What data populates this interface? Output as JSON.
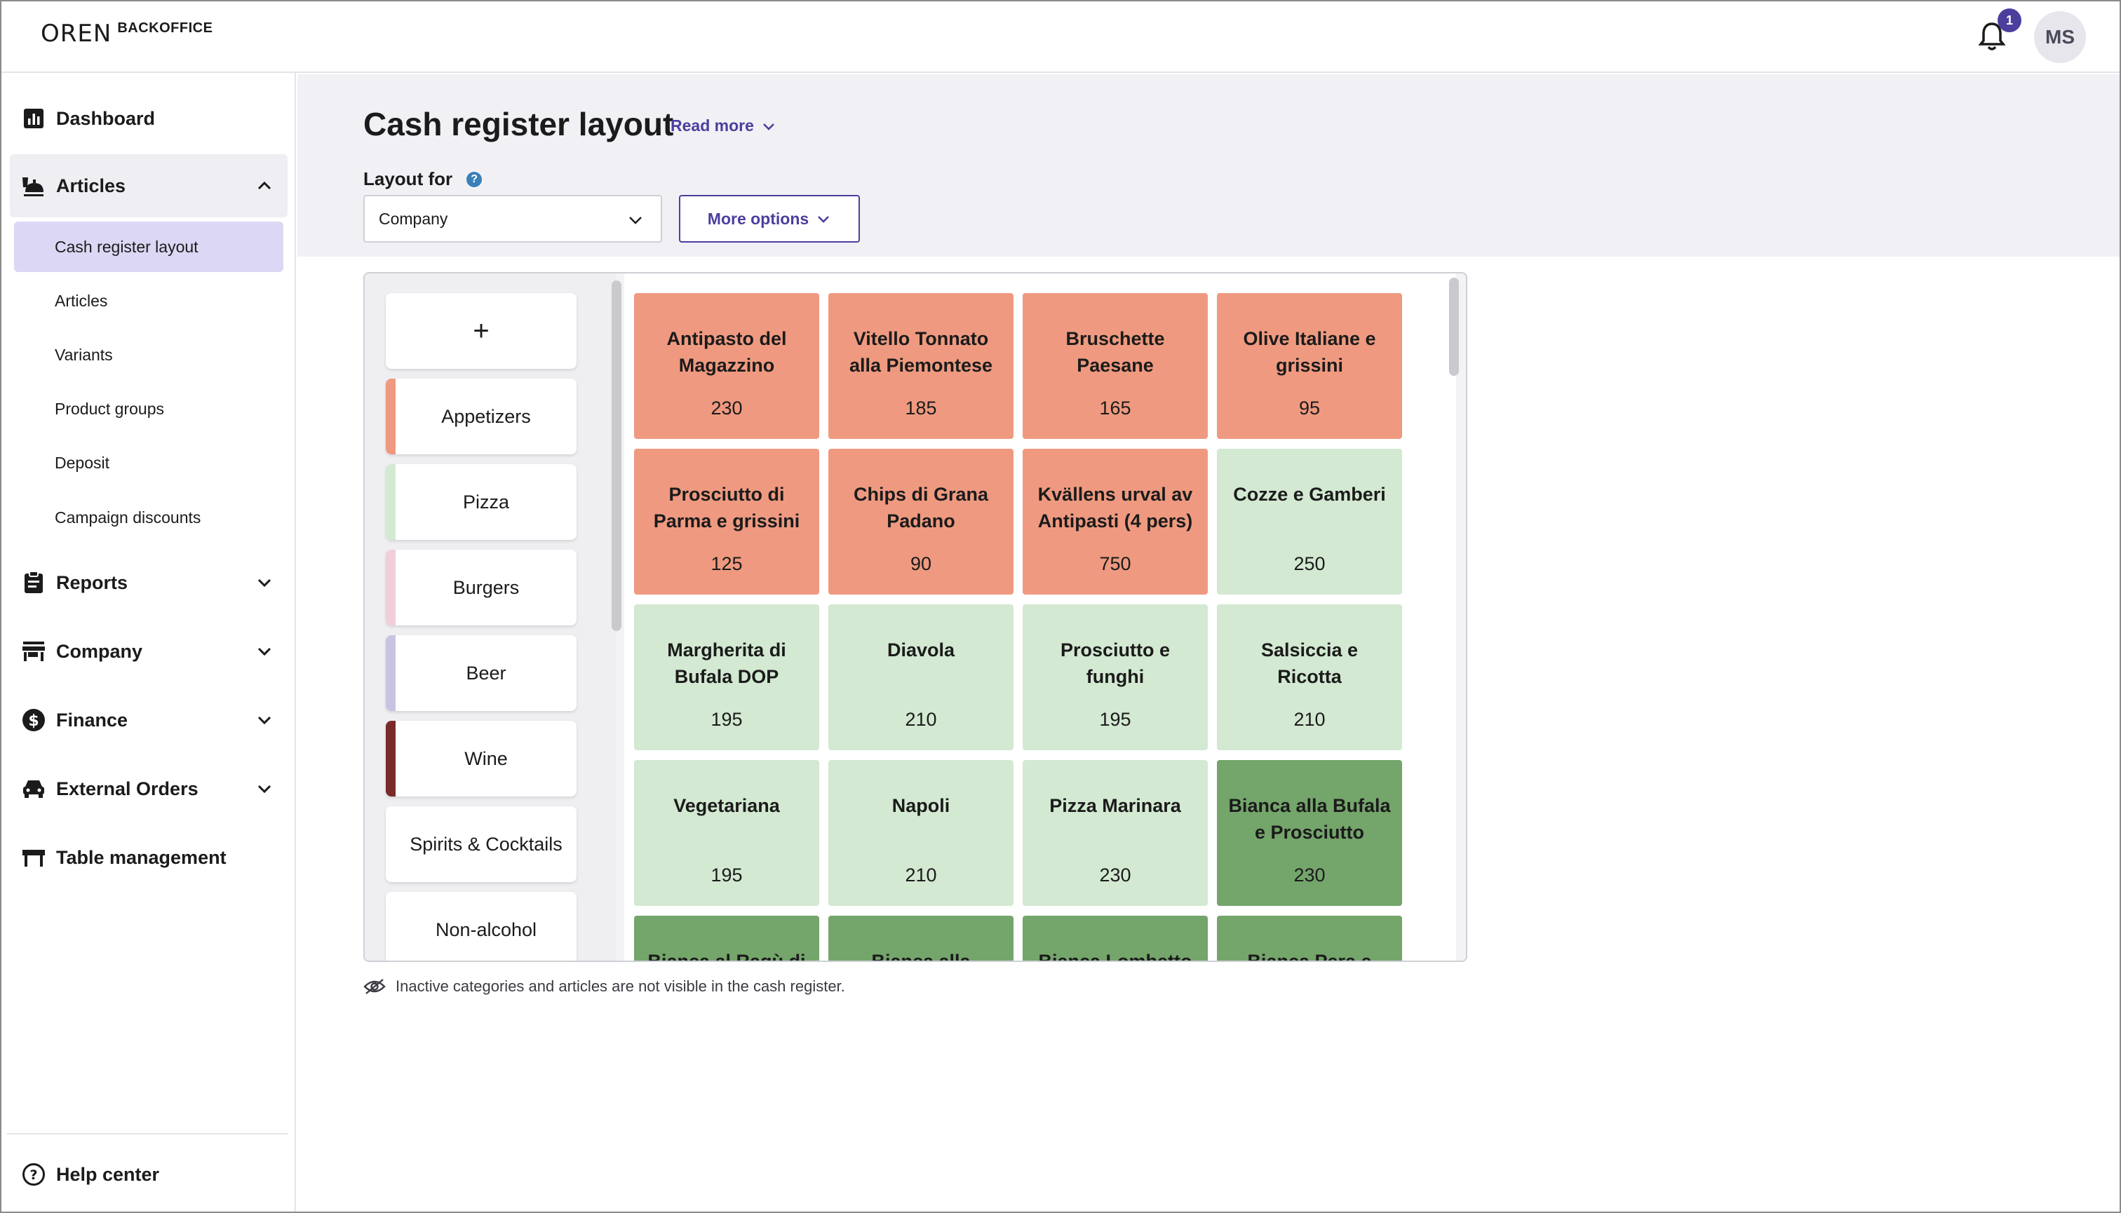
{
  "app": {
    "logo_mark": "OREN",
    "logo_word": "BACKOFFICE"
  },
  "header": {
    "notification_count": "1",
    "avatar_initials": "MS"
  },
  "sidebar": {
    "dashboard": "Dashboard",
    "articles": "Articles",
    "articles_sub": [
      "Cash register layout",
      "Articles",
      "Variants",
      "Product groups",
      "Deposit",
      "Campaign discounts"
    ],
    "reports": "Reports",
    "company": "Company",
    "finance": "Finance",
    "external_orders": "External Orders",
    "table_management": "Table management",
    "help_center": "Help center"
  },
  "page": {
    "title": "Cash register layout",
    "read_more": "Read more",
    "layout_for_label": "Layout for",
    "layout_for_value": "Company",
    "more_options": "More options",
    "footnote": "Inactive categories and articles are not visible in the cash register."
  },
  "categories": [
    {
      "label": "+",
      "color": ""
    },
    {
      "label": "Appetizers",
      "color": "#ef9a80"
    },
    {
      "label": "Pizza",
      "color": "#d3ead2"
    },
    {
      "label": "Burgers",
      "color": "#f1cfd8"
    },
    {
      "label": "Beer",
      "color": "#c9c3e2"
    },
    {
      "label": "Wine",
      "color": "#7a2a28"
    },
    {
      "label": "Spirits & Cocktails",
      "color": "#ffffff"
    },
    {
      "label": "Non-alcohol",
      "color": "#ffffff"
    }
  ],
  "colors": {
    "salmon": "#ef9a80",
    "light_green": "#d3e9d2",
    "dark_green": "#74a56b",
    "accent": "#4b3f9e"
  },
  "tiles": [
    {
      "name": "Antipasto del Magazzino",
      "price": "230",
      "color": "#ef9a80"
    },
    {
      "name": "Vitello Tonnato alla Piemontese",
      "price": "185",
      "color": "#ef9a80"
    },
    {
      "name": "Bruschette Paesane",
      "price": "165",
      "color": "#ef9a80"
    },
    {
      "name": "Olive Italiane e grissini",
      "price": "95",
      "color": "#ef9a80"
    },
    {
      "name": "Prosciutto di Parma e grissini",
      "price": "125",
      "color": "#ef9a80"
    },
    {
      "name": "Chips di Grana Padano",
      "price": "90",
      "color": "#ef9a80"
    },
    {
      "name": "Kvällens urval av Antipasti (4 pers)",
      "price": "750",
      "color": "#ef9a80"
    },
    {
      "name": "Cozze e Gamberi",
      "price": "250",
      "color": "#d3e9d2"
    },
    {
      "name": "Margherita di Bufala DOP",
      "price": "195",
      "color": "#d3e9d2"
    },
    {
      "name": "Diavola",
      "price": "210",
      "color": "#d3e9d2"
    },
    {
      "name": "Prosciutto e funghi",
      "price": "195",
      "color": "#d3e9d2"
    },
    {
      "name": "Salsiccia e Ricotta",
      "price": "210",
      "color": "#d3e9d2"
    },
    {
      "name": "Vegetariana",
      "price": "195",
      "color": "#d3e9d2"
    },
    {
      "name": "Napoli",
      "price": "210",
      "color": "#d3e9d2"
    },
    {
      "name": "Pizza Marinara",
      "price": "230",
      "color": "#d3e9d2"
    },
    {
      "name": "Bianca alla Bufala e Prosciutto",
      "price": "230",
      "color": "#74a56b"
    },
    {
      "name": "Bianca al Ragù di",
      "price": "",
      "color": "#74a56b"
    },
    {
      "name": "Bianca alla",
      "price": "",
      "color": "#74a56b"
    },
    {
      "name": "Bianca Lombetto",
      "price": "",
      "color": "#74a56b"
    },
    {
      "name": "Bianca Pera e",
      "price": "",
      "color": "#74a56b"
    }
  ]
}
